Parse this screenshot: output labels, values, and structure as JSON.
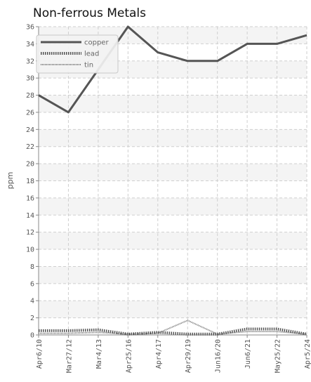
{
  "chart_data": {
    "type": "line",
    "title": "Non-ferrous Metals",
    "xlabel": "",
    "ylabel": "ppm",
    "categories": [
      "Apr6/10",
      "Mar27/12",
      "Mar4/13",
      "Apr25/16",
      "Apr4/17",
      "Apr29/19",
      "Jun16/20",
      "Jun6/21",
      "May25/22",
      "Apr5/24"
    ],
    "ylim": [
      0,
      36
    ],
    "yticks": [
      0,
      2,
      4,
      6,
      8,
      10,
      12,
      14,
      16,
      18,
      20,
      22,
      24,
      26,
      28,
      30,
      32,
      34,
      36
    ],
    "grid": true,
    "legend_position": "top-left",
    "series": [
      {
        "name": "copper",
        "values": [
          28,
          26,
          31,
          36,
          33,
          32,
          32,
          34,
          34,
          35
        ],
        "color": "#555555",
        "style": "solid"
      },
      {
        "name": "lead",
        "values": [
          0.5,
          0.5,
          0.6,
          0.1,
          0.3,
          0.1,
          0.1,
          0.7,
          0.7,
          0.1
        ],
        "color": "#555555",
        "style": "dotted-thick"
      },
      {
        "name": "tin",
        "values": [
          0.2,
          0.2,
          0.3,
          0.1,
          0.2,
          1.7,
          0.1,
          0.4,
          0.4,
          0.1
        ],
        "color": "#777777",
        "style": "dotted-thin"
      }
    ]
  }
}
